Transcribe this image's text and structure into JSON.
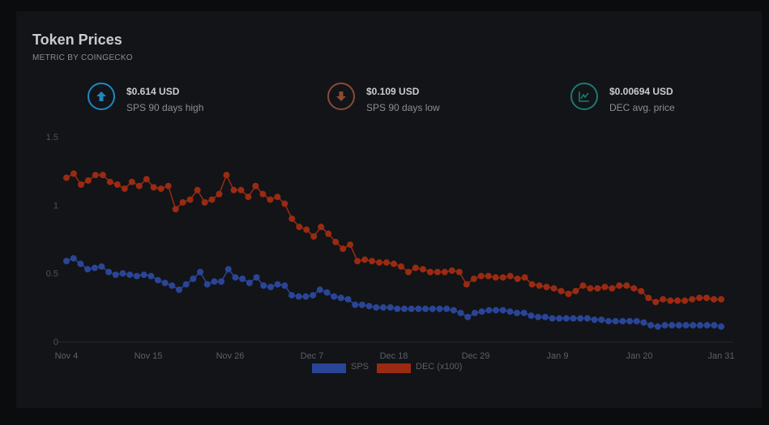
{
  "header": {
    "title": "Token Prices",
    "subtitle": "METRIC BY COINGECKO"
  },
  "stats": [
    {
      "value": "$0.614 USD",
      "label": "SPS 90 days high",
      "icon": "arrow-up-icon",
      "color": "#1f87c4"
    },
    {
      "value": "$0.109 USD",
      "label": "SPS 90 days low",
      "icon": "arrow-down-icon",
      "color": "#8a4a36"
    },
    {
      "value": "$0.00694 USD",
      "label": "DEC avg. price",
      "icon": "line-chart-icon",
      "color": "#1a7a72"
    }
  ],
  "chart_data": {
    "type": "line",
    "x_ticks": [
      "Nov 4",
      "Nov 15",
      "Nov 26",
      "Dec 7",
      "Dec 18",
      "Dec 29",
      "Jan 9",
      "Jan 20",
      "Jan 31"
    ],
    "y_ticks": [
      "0",
      "0.5",
      "1",
      "1.5"
    ],
    "ylim": [
      0,
      1.5
    ],
    "grid": false,
    "legend_position": "bottom",
    "series": [
      {
        "name": "SPS",
        "color": "#2a4597",
        "values": [
          0.59,
          0.61,
          0.57,
          0.53,
          0.54,
          0.55,
          0.51,
          0.49,
          0.5,
          0.49,
          0.48,
          0.49,
          0.48,
          0.45,
          0.43,
          0.41,
          0.38,
          0.42,
          0.46,
          0.51,
          0.42,
          0.44,
          0.44,
          0.53,
          0.47,
          0.46,
          0.43,
          0.47,
          0.41,
          0.4,
          0.42,
          0.41,
          0.34,
          0.33,
          0.33,
          0.34,
          0.38,
          0.36,
          0.33,
          0.32,
          0.31,
          0.27,
          0.27,
          0.26,
          0.25,
          0.25,
          0.25,
          0.24,
          0.24,
          0.24,
          0.24,
          0.24,
          0.24,
          0.24,
          0.24,
          0.23,
          0.21,
          0.18,
          0.21,
          0.22,
          0.23,
          0.23,
          0.23,
          0.22,
          0.21,
          0.21,
          0.19,
          0.18,
          0.18,
          0.17,
          0.17,
          0.17,
          0.17,
          0.17,
          0.17,
          0.16,
          0.16,
          0.15,
          0.15,
          0.15,
          0.15,
          0.15,
          0.14,
          0.12,
          0.11,
          0.12,
          0.12,
          0.12,
          0.12,
          0.12,
          0.12,
          0.12,
          0.12,
          0.11
        ]
      },
      {
        "name": "DEC (x100)",
        "color": "#9b2a12",
        "values": [
          1.2,
          1.23,
          1.15,
          1.18,
          1.22,
          1.22,
          1.17,
          1.15,
          1.12,
          1.17,
          1.14,
          1.19,
          1.13,
          1.12,
          1.14,
          0.97,
          1.02,
          1.04,
          1.11,
          1.02,
          1.04,
          1.08,
          1.22,
          1.11,
          1.11,
          1.06,
          1.14,
          1.08,
          1.04,
          1.06,
          1.01,
          0.9,
          0.84,
          0.82,
          0.77,
          0.84,
          0.79,
          0.73,
          0.68,
          0.71,
          0.59,
          0.6,
          0.59,
          0.58,
          0.58,
          0.57,
          0.55,
          0.51,
          0.54,
          0.53,
          0.51,
          0.51,
          0.51,
          0.52,
          0.51,
          0.42,
          0.46,
          0.48,
          0.48,
          0.47,
          0.47,
          0.48,
          0.46,
          0.47,
          0.42,
          0.41,
          0.4,
          0.39,
          0.37,
          0.35,
          0.37,
          0.41,
          0.39,
          0.39,
          0.4,
          0.39,
          0.41,
          0.41,
          0.39,
          0.37,
          0.32,
          0.29,
          0.31,
          0.3,
          0.3,
          0.3,
          0.31,
          0.32,
          0.32,
          0.31,
          0.31
        ]
      }
    ]
  }
}
